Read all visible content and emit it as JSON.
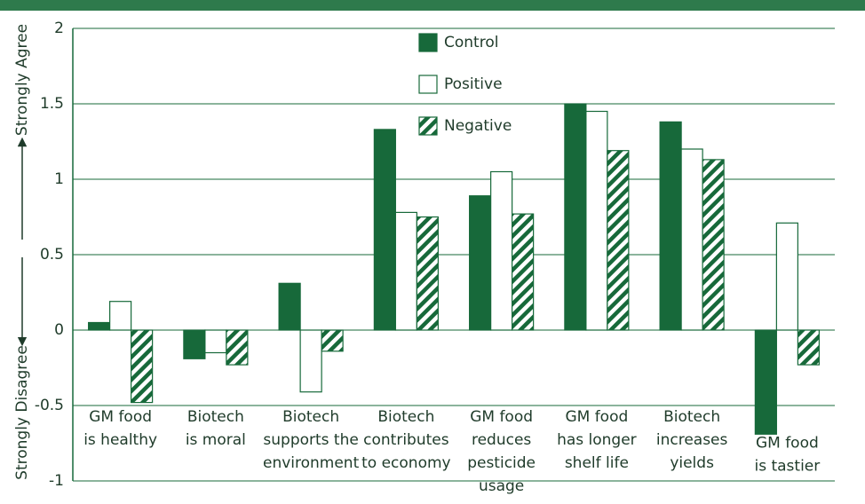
{
  "chart_data": {
    "type": "bar",
    "y_label_top": "Strongly Agree",
    "y_label_bottom": "Strongly Disagree",
    "categories": [
      "GM food\nis healthy",
      "Biotech\nis moral",
      "Biotech\nsupports the\nenvironment",
      "Biotech\ncontributes\nto economy",
      "GM food\nreduces\npesticide\nusage",
      "GM food\nhas longer\nshelf life",
      "Biotech\nincreases\nyields",
      "GM food\nis tastier"
    ],
    "series": [
      {
        "name": "Control",
        "color": "#17693a",
        "style": "solid",
        "values": [
          0.05,
          -0.19,
          0.31,
          1.33,
          0.89,
          1.5,
          1.38,
          -0.69
        ]
      },
      {
        "name": "Positive",
        "color": "#ffffff",
        "style": "outline",
        "values": [
          0.19,
          -0.15,
          -0.41,
          0.78,
          1.05,
          1.45,
          1.2,
          0.71
        ]
      },
      {
        "name": "Negative",
        "color": "#17693a",
        "style": "hatch",
        "values": [
          -0.48,
          -0.23,
          -0.14,
          0.75,
          0.77,
          1.19,
          1.13,
          -0.23
        ]
      }
    ],
    "ylim": [
      -1,
      2
    ],
    "yticks": [
      -1,
      -0.5,
      0,
      0.5,
      1,
      1.5,
      2
    ],
    "grid": true
  }
}
